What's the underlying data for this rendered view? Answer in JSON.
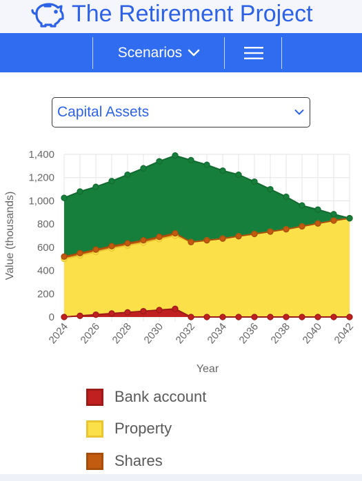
{
  "header": {
    "title": "The Retirement Project",
    "logo_icon": "piggy-bank-icon"
  },
  "navbar": {
    "scenarios_label": "Scenarios",
    "menu_icon": "hamburger-menu-icon",
    "color": "#2f6cf0"
  },
  "selector": {
    "value": "Capital Assets"
  },
  "chart_data": {
    "type": "area",
    "stacked": true,
    "xlabel": "Year",
    "ylabel": "Value (thousands)",
    "ylim": [
      0,
      1400
    ],
    "yticks": [
      "0",
      "200",
      "400",
      "600",
      "800",
      "1,000",
      "1,200",
      "1,400"
    ],
    "xticks": [
      "2024",
      "2026",
      "2028",
      "2030",
      "2032",
      "2034",
      "2036",
      "2038",
      "2040",
      "2042"
    ],
    "x": [
      2024,
      2025,
      2026,
      2027,
      2028,
      2029,
      2030,
      2031,
      2032,
      2033,
      2034,
      2035,
      2036,
      2037,
      2038,
      2039,
      2040,
      2041,
      2042
    ],
    "grid": true,
    "series": [
      {
        "name": "Bank account",
        "color": "#c0201f",
        "border": "#9c1a18",
        "values": [
          0,
          10,
          20,
          30,
          40,
          50,
          60,
          70,
          0,
          0,
          0,
          0,
          0,
          0,
          0,
          0,
          0,
          0,
          0
        ]
      },
      {
        "name": "Property",
        "color": "#fbe04a",
        "border": "#e8c531",
        "values": [
          500,
          520,
          540,
          560,
          575,
          590,
          610,
          630,
          645,
          660,
          675,
          695,
          715,
          735,
          755,
          780,
          805,
          830,
          850
        ]
      },
      {
        "name": "Shares",
        "color": "#c25a10",
        "border": "#a84e0c",
        "values": [
          20,
          20,
          20,
          20,
          20,
          20,
          20,
          20,
          0,
          0,
          0,
          0,
          0,
          0,
          0,
          0,
          0,
          0,
          0
        ]
      },
      {
        "name": "",
        "color": "#177f3c",
        "border": "#136a31",
        "values": [
          505,
          530,
          540,
          560,
          590,
          620,
          650,
          670,
          705,
          650,
          585,
          530,
          450,
          365,
          280,
          180,
          120,
          55,
          0
        ]
      }
    ]
  },
  "legend": [
    {
      "label": "Bank account",
      "fill": "#c0201f",
      "border": "#9c1a18"
    },
    {
      "label": "Property",
      "fill": "#fbe04a",
      "border": "#e8c531"
    },
    {
      "label": "Shares",
      "fill": "#c25a10",
      "border": "#a84e0c"
    }
  ]
}
